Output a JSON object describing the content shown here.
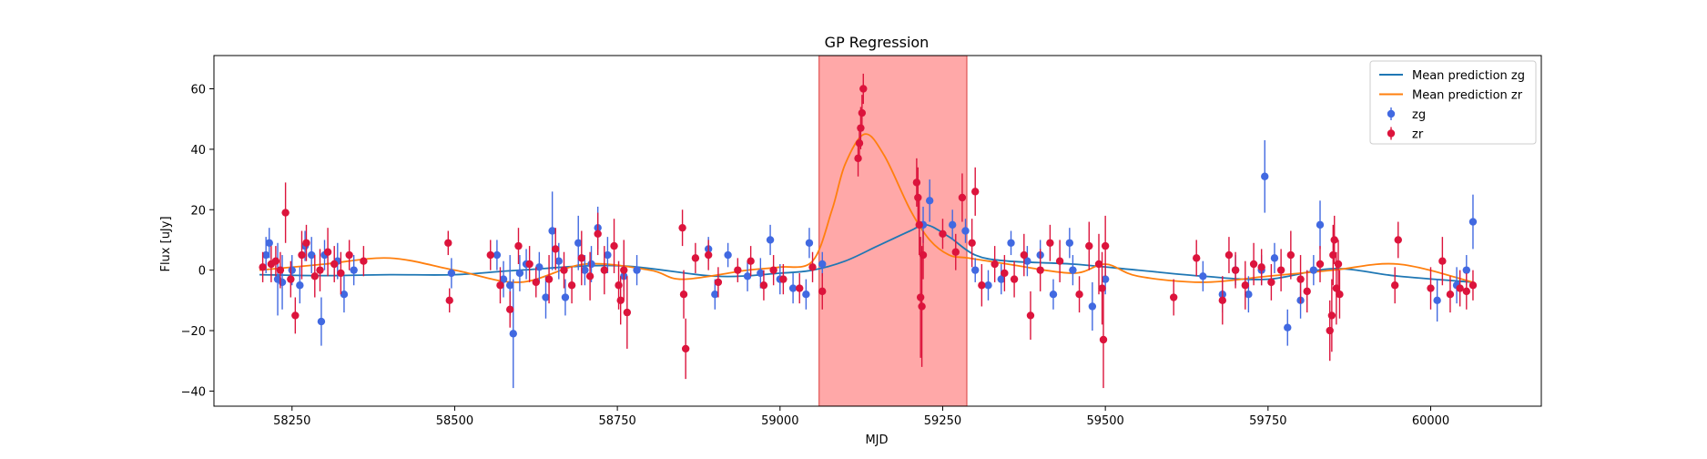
{
  "chart_data": {
    "type": "scatter",
    "title": "GP Regression",
    "xlabel": "MJD",
    "ylabel": "Flux [uJy]",
    "xlim": [
      58130,
      60170
    ],
    "ylim": [
      -45,
      71
    ],
    "x_ticks": [
      58250,
      58500,
      58750,
      59000,
      59250,
      59500,
      59750,
      60000
    ],
    "y_ticks": [
      -40,
      -20,
      0,
      20,
      40,
      60
    ],
    "grid": false,
    "legend_position": "top-right",
    "highlight_region": {
      "x_start": 59060,
      "x_end": 59287,
      "color": "#ff9999"
    },
    "series": [
      {
        "name": "Mean prediction zg",
        "kind": "line",
        "color": "#1f77b4",
        "x": [
          58200,
          58300,
          58400,
          58500,
          58600,
          58750,
          58900,
          59000,
          59050,
          59100,
          59150,
          59200,
          59225,
          59260,
          59300,
          59350,
          59450,
          59550,
          59650,
          59750,
          59850,
          59950,
          60065
        ],
        "y": [
          -1.5,
          -1.8,
          -1.5,
          -1.5,
          0,
          1.5,
          -2,
          -1,
          0,
          3,
          8,
          13,
          15,
          11,
          5,
          3,
          2,
          0,
          -2,
          -3,
          0.5,
          -2,
          -4
        ]
      },
      {
        "name": "Mean prediction zr",
        "kind": "line",
        "color": "#ff7f0e",
        "x": [
          58200,
          58300,
          58400,
          58500,
          58600,
          58700,
          58800,
          58850,
          58950,
          59000,
          59050,
          59080,
          59100,
          59130,
          59160,
          59200,
          59230,
          59260,
          59290,
          59350,
          59450,
          59500,
          59550,
          59650,
          59750,
          59850,
          59950,
          60065
        ],
        "y": [
          0,
          2,
          4,
          0,
          -4,
          2,
          0,
          -3,
          0,
          1,
          3,
          20,
          35,
          45,
          38,
          20,
          10,
          5,
          4,
          2,
          -1,
          2,
          -2,
          -4,
          -2,
          0,
          2,
          -4
        ]
      },
      {
        "name": "zg",
        "kind": "errorbar",
        "color": "#4169e1",
        "x": [
          58210,
          58215,
          58228,
          58235,
          58250,
          58262,
          58270,
          58280,
          58295,
          58300,
          58320,
          58330,
          58345,
          58495,
          58565,
          58575,
          58585,
          58590,
          58600,
          58610,
          58630,
          58640,
          58650,
          58660,
          58670,
          58690,
          58700,
          58710,
          58720,
          58735,
          58760,
          58780,
          58890,
          58900,
          58920,
          58950,
          58970,
          58985,
          59000,
          59020,
          59040,
          59045,
          59065,
          59220,
          59230,
          59265,
          59285,
          59300,
          59320,
          59340,
          59355,
          59380,
          59400,
          59420,
          59445,
          59450,
          59480,
          59500,
          59650,
          59680,
          59700,
          59720,
          59740,
          59745,
          59760,
          59780,
          59800,
          59820,
          59830,
          60010,
          60040,
          60055,
          60065
        ],
        "y": [
          5,
          9,
          -3,
          -4,
          0,
          -5,
          8,
          5,
          -17,
          5,
          3,
          -8,
          0,
          -1,
          5,
          -3,
          -5,
          -21,
          -1,
          2,
          1,
          -9,
          13,
          3,
          -9,
          9,
          0,
          2,
          14,
          5,
          -2,
          0,
          7,
          -8,
          5,
          -2,
          -1,
          10,
          -3,
          -6,
          -8,
          9,
          2,
          15,
          23,
          15,
          13,
          0,
          -5,
          -3,
          9,
          3,
          5,
          -8,
          9,
          0,
          -12,
          -3,
          -2,
          -8,
          0,
          -8,
          0,
          31,
          4,
          -19,
          -10,
          0,
          15,
          -10,
          -5,
          0,
          16
        ],
        "yerr": [
          6,
          5,
          12,
          9,
          5,
          6,
          5,
          6,
          8,
          5,
          6,
          6,
          5,
          5,
          5,
          6,
          10,
          18,
          6,
          5,
          5,
          7,
          13,
          6,
          6,
          9,
          5,
          6,
          7,
          6,
          5,
          5,
          4,
          5,
          4,
          5,
          5,
          5,
          5,
          5,
          5,
          5,
          4,
          6,
          7,
          5,
          4,
          4,
          5,
          5,
          4,
          5,
          5,
          5,
          5,
          5,
          8,
          5,
          5,
          6,
          5,
          6,
          5,
          12,
          5,
          6,
          6,
          5,
          8,
          7,
          6,
          5,
          9
        ]
      },
      {
        "name": "zr",
        "kind": "errorbar",
        "color": "#dc143c",
        "x": [
          58205,
          58218,
          58225,
          58232,
          58240,
          58248,
          58255,
          58265,
          58272,
          58285,
          58293,
          58305,
          58315,
          58325,
          58338,
          58360,
          58490,
          58492,
          58555,
          58570,
          58585,
          58598,
          58615,
          58625,
          58645,
          58655,
          58668,
          58680,
          58695,
          58708,
          58720,
          58730,
          58745,
          58752,
          58755,
          58760,
          58765,
          58850,
          58852,
          58855,
          58870,
          58890,
          58905,
          58935,
          58955,
          58975,
          58990,
          59005,
          59030,
          59050,
          59065,
          59120,
          59122,
          59124,
          59126,
          59128,
          59210,
          59212,
          59214,
          59216,
          59218,
          59220,
          59250,
          59270,
          59280,
          59295,
          59300,
          59310,
          59330,
          59345,
          59360,
          59375,
          59385,
          59400,
          59415,
          59430,
          59460,
          59475,
          59490,
          59495,
          59497,
          59500,
          59605,
          59640,
          59680,
          59690,
          59700,
          59715,
          59728,
          59740,
          59755,
          59770,
          59785,
          59800,
          59810,
          59830,
          59845,
          59848,
          59850,
          59852,
          59855,
          59858,
          59860,
          59945,
          59950,
          60000,
          60018,
          60030,
          60045,
          60055,
          60065
        ],
        "y": [
          1,
          2,
          3,
          0,
          19,
          -3,
          -15,
          5,
          9,
          -2,
          0,
          6,
          2,
          -1,
          5,
          3,
          9,
          -10,
          5,
          -5,
          -13,
          8,
          2,
          -4,
          -3,
          7,
          0,
          -5,
          4,
          -2,
          12,
          0,
          8,
          -5,
          -10,
          0,
          -14,
          14,
          -8,
          -26,
          4,
          5,
          -4,
          0,
          3,
          -5,
          0,
          -3,
          -6,
          1,
          -7,
          37,
          42,
          47,
          52,
          60,
          29,
          24,
          15,
          -9,
          -12,
          5,
          12,
          6,
          24,
          9,
          26,
          -5,
          2,
          -1,
          -3,
          5,
          -15,
          0,
          9,
          3,
          -8,
          8,
          2,
          -6,
          -23,
          8,
          -9,
          4,
          -10,
          5,
          0,
          -5,
          2,
          1,
          -4,
          0,
          5,
          -3,
          -7,
          2,
          -20,
          -15,
          5,
          10,
          -6,
          2,
          -8,
          -5,
          10,
          -6,
          3,
          -8,
          -6,
          -7,
          -5
        ],
        "yerr": [
          5,
          6,
          5,
          6,
          10,
          6,
          6,
          8,
          6,
          7,
          7,
          8,
          6,
          7,
          5,
          5,
          4,
          4,
          5,
          6,
          6,
          6,
          6,
          5,
          8,
          7,
          6,
          6,
          9,
          8,
          7,
          8,
          9,
          8,
          8,
          10,
          12,
          6,
          8,
          10,
          5,
          5,
          5,
          4,
          5,
          5,
          5,
          5,
          5,
          5,
          6,
          6,
          6,
          7,
          6,
          5,
          8,
          10,
          10,
          20,
          20,
          8,
          5,
          6,
          8,
          8,
          8,
          7,
          6,
          6,
          6,
          7,
          8,
          7,
          6,
          7,
          6,
          8,
          10,
          12,
          16,
          10,
          6,
          6,
          8,
          6,
          6,
          8,
          7,
          6,
          6,
          7,
          8,
          8,
          7,
          6,
          10,
          12,
          10,
          8,
          12,
          8,
          8,
          6,
          6,
          7,
          8,
          6,
          6,
          6,
          5
        ]
      }
    ]
  }
}
